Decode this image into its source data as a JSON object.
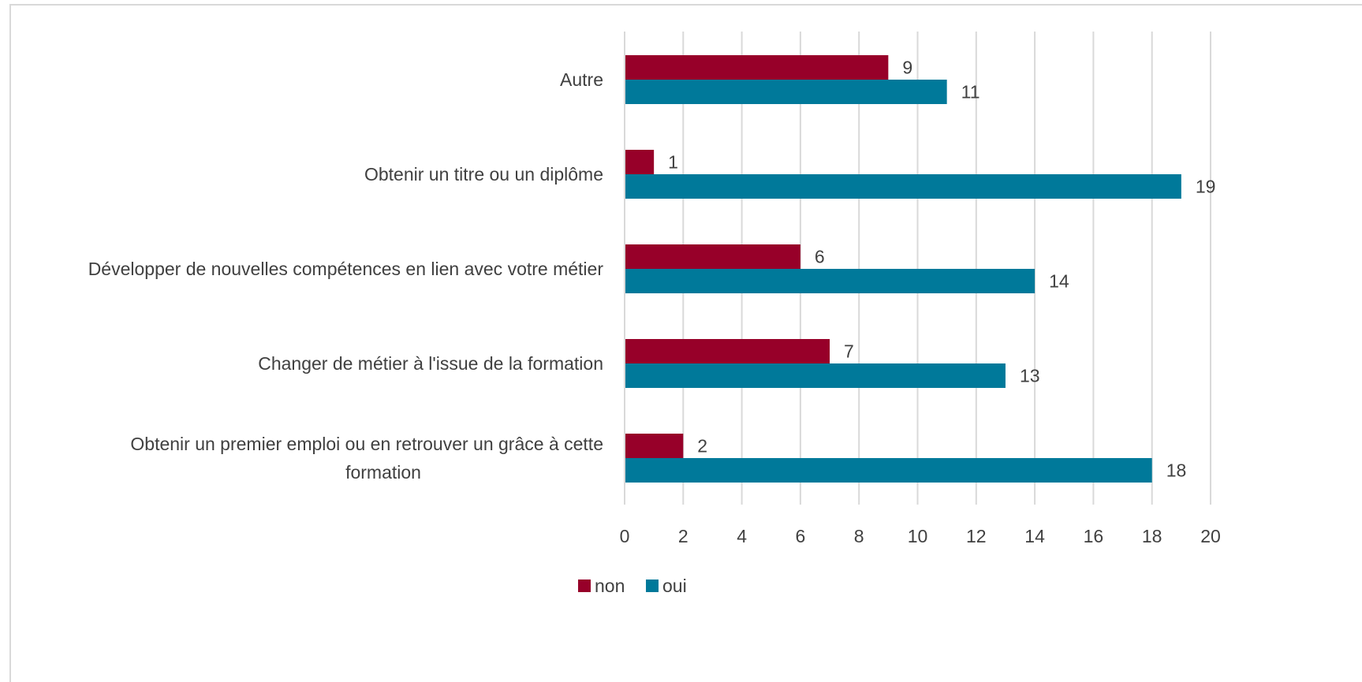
{
  "chart_data": {
    "type": "bar",
    "orientation": "horizontal",
    "categories": [
      "Autre",
      "Obtenir un titre ou un diplôme",
      "Développer de nouvelles compétences en lien avec votre métier",
      "Changer de métier à l'issue de la formation",
      "Obtenir un premier emploi ou en retrouver un grâce à cette formation"
    ],
    "category_lines": [
      [
        "Autre"
      ],
      [
        "Obtenir un titre ou un diplôme"
      ],
      [
        "Développer de nouvelles compétences en lien avec votre métier"
      ],
      [
        "Changer de métier à l'issue de la formation"
      ],
      [
        "Obtenir un premier emploi ou en retrouver un grâce à cette",
        "formation"
      ]
    ],
    "series": [
      {
        "name": "non",
        "color": "#970029",
        "values": [
          9,
          1,
          6,
          7,
          2
        ]
      },
      {
        "name": "oui",
        "color": "#00799a",
        "values": [
          11,
          19,
          14,
          13,
          18
        ]
      }
    ],
    "xlim": [
      0,
      20
    ],
    "x_ticks": [
      "0",
      "2",
      "4",
      "6",
      "8",
      "10",
      "12",
      "14",
      "16",
      "18",
      "20"
    ],
    "grid": true,
    "legend_position": "bottom",
    "data_labels": true
  }
}
